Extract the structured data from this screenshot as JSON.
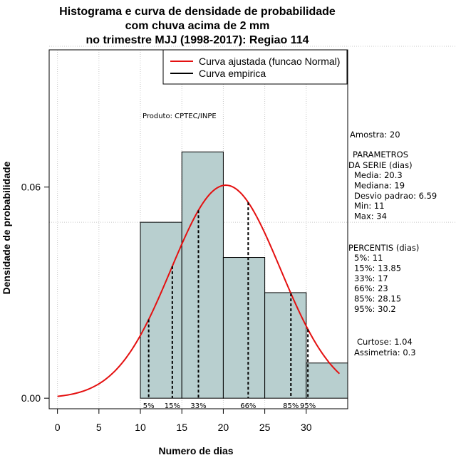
{
  "chart_data": {
    "type": "histogram",
    "title": [
      "Histograma e curva de densidade de probabilidade",
      "com chuva acima de 2 mm",
      "no trimestre MJJ (1998-2017): Regiao 114"
    ],
    "xlabel": "Numero de dias",
    "ylabel": "Densidade de probabilidade",
    "xlim": [
      -1,
      35
    ],
    "ylim": [
      -0.003,
      0.099
    ],
    "x_ticks": [
      0,
      5,
      10,
      15,
      20,
      25,
      30
    ],
    "x_tick_labels": [
      "0",
      "5",
      "10",
      "15",
      "20",
      "25",
      "30"
    ],
    "y_ticks": [
      0.0,
      0.06
    ],
    "y_tick_labels": [
      "0.00",
      "0.06"
    ],
    "grid_x": [
      0,
      5,
      10,
      15,
      20,
      25,
      30
    ],
    "grid_y": [
      0.05,
      0.1
    ],
    "bins": [
      {
        "from": 10,
        "to": 15,
        "density": 0.05
      },
      {
        "from": 15,
        "to": 20,
        "density": 0.07
      },
      {
        "from": 20,
        "to": 25,
        "density": 0.04
      },
      {
        "from": 25,
        "to": 30,
        "density": 0.03
      },
      {
        "from": 30,
        "to": 35,
        "density": 0.01
      }
    ],
    "bar_color": "#b8cfcf",
    "normal_curve": {
      "mean": 20.3,
      "sd": 6.59,
      "x_from": 0,
      "x_to": 34,
      "color": "#e41010"
    },
    "percentile_lines": [
      {
        "label": "5%",
        "x": 11
      },
      {
        "label": "15%",
        "x": 13.85
      },
      {
        "label": "33%",
        "x": 17
      },
      {
        "label": "66%",
        "x": 23
      },
      {
        "label": "85%",
        "x": 28.15
      },
      {
        "label": "95%",
        "x": 30.2
      }
    ],
    "legend": [
      {
        "label": "Curva ajustada (funcao Normal)",
        "color": "#e41010"
      },
      {
        "label": "Curva empirica",
        "color": "#000000"
      }
    ],
    "legend_position": "top-right",
    "product_label": "Produto: CPTEC/INPE"
  },
  "side_panel": {
    "sample": "Amostra: 20",
    "params_title": "PARAMETROS",
    "params_subtitle": "DA SERIE (dias)",
    "params": [
      "Media: 20.3",
      "Mediana: 19",
      "Desvio padrao: 6.59",
      "Min: 11",
      "Max: 34"
    ],
    "percentis_title": "PERCENTIS (dias)",
    "percentis": [
      "5%: 11",
      "15%: 13.85",
      "33%: 17",
      "66%: 23",
      "85%: 28.15",
      "95%: 30.2"
    ],
    "curtose": "Curtose: 1.04",
    "assimetria": "Assimetria: 0.3"
  }
}
